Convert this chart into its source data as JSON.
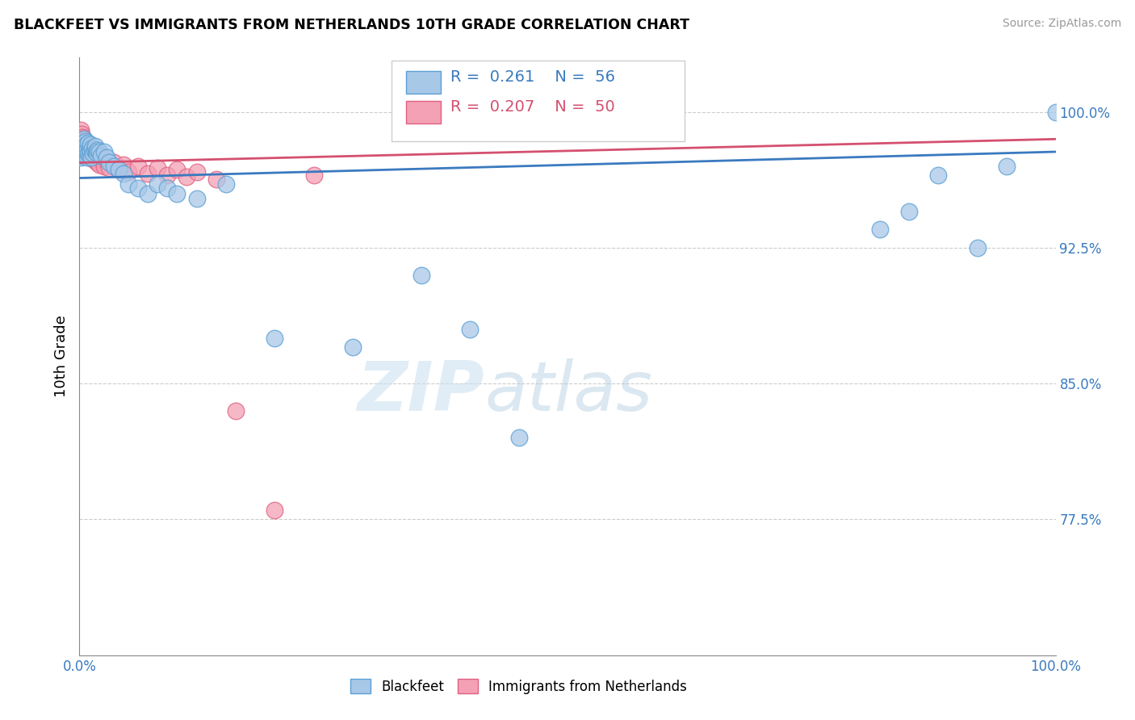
{
  "title": "BLACKFEET VS IMMIGRANTS FROM NETHERLANDS 10TH GRADE CORRELATION CHART",
  "source_text": "Source: ZipAtlas.com",
  "ylabel": "10th Grade",
  "xlim": [
    0.0,
    1.0
  ],
  "ylim": [
    0.7,
    1.03
  ],
  "ytick_labels": [
    "77.5%",
    "85.0%",
    "92.5%",
    "100.0%"
  ],
  "ytick_values": [
    0.775,
    0.85,
    0.925,
    1.0
  ],
  "xtick_labels": [
    "0.0%",
    "100.0%"
  ],
  "xtick_values": [
    0.0,
    1.0
  ],
  "legend_blue_r": "0.261",
  "legend_blue_n": "56",
  "legend_pink_r": "0.207",
  "legend_pink_n": "50",
  "watermark_zip": "ZIP",
  "watermark_atlas": "atlas",
  "blue_color": "#a8c8e8",
  "pink_color": "#f4a0b5",
  "blue_edge_color": "#5a9fd4",
  "pink_edge_color": "#e06080",
  "blue_line_color": "#3a7abf",
  "pink_line_color": "#d45070",
  "blue_scatter_x": [
    0.001,
    0.002,
    0.003,
    0.003,
    0.004,
    0.004,
    0.005,
    0.005,
    0.005,
    0.006,
    0.006,
    0.007,
    0.007,
    0.008,
    0.008,
    0.009,
    0.009,
    0.01,
    0.01,
    0.011,
    0.011,
    0.012,
    0.013,
    0.014,
    0.015,
    0.016,
    0.017,
    0.018,
    0.019,
    0.02,
    0.022,
    0.025,
    0.028,
    0.03,
    0.035,
    0.04,
    0.045,
    0.05,
    0.06,
    0.07,
    0.08,
    0.09,
    0.1,
    0.12,
    0.15,
    0.2,
    0.28,
    0.35,
    0.4,
    0.45,
    0.82,
    0.85,
    0.88,
    0.92,
    0.95,
    1.0
  ],
  "blue_scatter_y": [
    0.975,
    0.98,
    0.978,
    0.976,
    0.982,
    0.979,
    0.985,
    0.983,
    0.981,
    0.984,
    0.979,
    0.982,
    0.978,
    0.975,
    0.98,
    0.977,
    0.983,
    0.976,
    0.98,
    0.982,
    0.978,
    0.975,
    0.98,
    0.977,
    0.979,
    0.981,
    0.978,
    0.977,
    0.979,
    0.978,
    0.976,
    0.978,
    0.975,
    0.972,
    0.97,
    0.968,
    0.966,
    0.96,
    0.958,
    0.955,
    0.96,
    0.958,
    0.955,
    0.952,
    0.96,
    0.875,
    0.87,
    0.91,
    0.88,
    0.82,
    0.935,
    0.945,
    0.965,
    0.925,
    0.97,
    1.0
  ],
  "pink_scatter_x": [
    0.001,
    0.001,
    0.002,
    0.002,
    0.003,
    0.003,
    0.003,
    0.004,
    0.004,
    0.005,
    0.005,
    0.006,
    0.006,
    0.007,
    0.007,
    0.008,
    0.008,
    0.009,
    0.009,
    0.01,
    0.01,
    0.011,
    0.012,
    0.013,
    0.014,
    0.015,
    0.016,
    0.017,
    0.018,
    0.019,
    0.02,
    0.022,
    0.025,
    0.028,
    0.03,
    0.035,
    0.04,
    0.045,
    0.05,
    0.06,
    0.07,
    0.08,
    0.09,
    0.1,
    0.11,
    0.12,
    0.14,
    0.16,
    0.2,
    0.24
  ],
  "pink_scatter_y": [
    0.99,
    0.985,
    0.988,
    0.984,
    0.986,
    0.983,
    0.98,
    0.985,
    0.981,
    0.984,
    0.98,
    0.983,
    0.979,
    0.982,
    0.978,
    0.981,
    0.977,
    0.98,
    0.976,
    0.98,
    0.976,
    0.979,
    0.975,
    0.978,
    0.974,
    0.977,
    0.973,
    0.976,
    0.972,
    0.975,
    0.971,
    0.974,
    0.97,
    0.973,
    0.969,
    0.972,
    0.968,
    0.971,
    0.967,
    0.97,
    0.966,
    0.969,
    0.965,
    0.968,
    0.964,
    0.967,
    0.963,
    0.835,
    0.78,
    0.965
  ],
  "blue_trendline": [
    0.9635,
    0.978
  ],
  "pink_trendline": [
    0.972,
    0.985
  ]
}
